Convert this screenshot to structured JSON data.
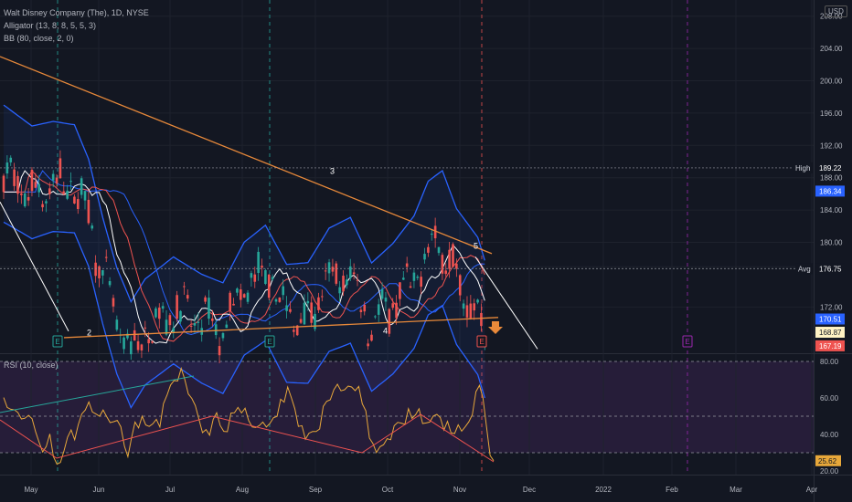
{
  "legend": {
    "title": "Walt Disney Company (The), 1D, NYSE",
    "alligator": "Alligator (13, 8, 8, 5, 5, 3)",
    "bb": "BB (80, close, 2, 0)",
    "rsi": "RSI (10, close)"
  },
  "currency": "USD",
  "colors": {
    "background": "#131722",
    "up": "#26a69a",
    "down": "#ef5350",
    "bb": "#2962ff",
    "trend": "#e8893a",
    "rsi": "#e8a83a",
    "grid_dashed": "#9598a1",
    "rsi_band": "#2a1f3d"
  },
  "chart_data": [
    {
      "type": "candlestick",
      "title": "",
      "y_axis_ticks": [
        208.0,
        204.0,
        200.0,
        196.0,
        192.0,
        188.0,
        184.0,
        180.0,
        177.0,
        172.0
      ],
      "ylim": [
        166.5,
        210
      ],
      "x_axis_ticks": [
        "May",
        "Jun",
        "Jul",
        "Aug",
        "Sep",
        "Oct",
        "Nov",
        "Dec",
        "2022",
        "Feb",
        "Mar",
        "Apr"
      ],
      "price_labels": {
        "high_label": "High",
        "high": "189.22",
        "upper_band": "186.34",
        "avg_label": "Avg",
        "avg": "176.75",
        "mid_band": "170.51",
        "last_a": "168.87",
        "last_b": "167.19"
      },
      "wave_labels": [
        "2",
        "3",
        "4",
        "5"
      ],
      "event_markers": [
        "E",
        "E",
        "E",
        "E"
      ]
    },
    {
      "type": "line",
      "title": "",
      "series": [
        {
          "name": "",
          "values": [
            60.2,
            54.8,
            53.8,
            53.5,
            52.1,
            48.5,
            48.9,
            50.5,
            48.6,
            41.4,
            35.7,
            30.4,
            33.4,
            40.3,
            27.9,
            23.7,
            24.7,
            31.0,
            38.5,
            42.5,
            37.1,
            45.3,
            51.2,
            53.4,
            57.8,
            52.3,
            51.2,
            50.0,
            53.4,
            49.9,
            46.5,
            47.0,
            47.7,
            44.2,
            33.6,
            27.8,
            37.9,
            46.8,
            43.6,
            50.0,
            45.2,
            44.4,
            45.8,
            48.3,
            44.1,
            56.9,
            61.5,
            67.1,
            69.5,
            69.3,
            76.2,
            70.2,
            62.2,
            59.7,
            55.8,
            48.4,
            41.0,
            42.7,
            39.6,
            48.3,
            51.9,
            44.9,
            41.7,
            41.5,
            51.7,
            51.9,
            54.8,
            51.8,
            54.4,
            47.6,
            44.1,
            43.8,
            44.9,
            46.8,
            44.1,
            46.1,
            49.2,
            49.9,
            59.3,
            57.7,
            66.0,
            60.3,
            54.1,
            44.4,
            44.8,
            37.4,
            40.7,
            41.6,
            41.6,
            43.0,
            55.4,
            58.2,
            59.0,
            64.5,
            67.5,
            63.9,
            64.5,
            66.5,
            66.0,
            64.0,
            66.3,
            56.8,
            52.9,
            38.0,
            35.1,
            30.1,
            33.3,
            34.4,
            37.7,
            37.1,
            44.8,
            46.6,
            46.2,
            45.5,
            54.1,
            48.8,
            50.8,
            54.1,
            46.0,
            46.3,
            46.8,
            50.1,
            51.0,
            49.2,
            42.4,
            47.2,
            40.9,
            40.5,
            45.3,
            41.8,
            44.2,
            46.9,
            50.8,
            63.4,
            66.9,
            60.0,
            44.2,
            28.5,
            25.6
          ]
        }
      ],
      "y_axis_ticks": [
        80.0,
        60.0,
        40.0,
        20.0
      ],
      "ylim": [
        18,
        83
      ],
      "last_value": "25.62"
    }
  ]
}
